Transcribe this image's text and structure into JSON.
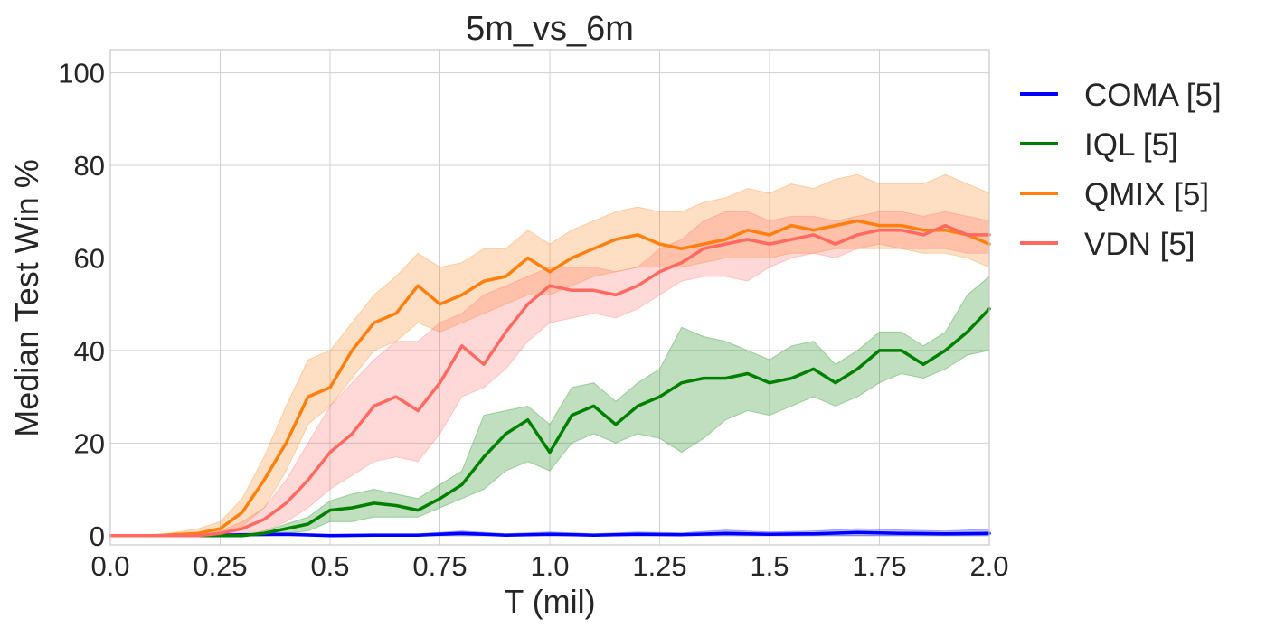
{
  "chart_data": {
    "type": "line",
    "title": "5m_vs_6m",
    "xlabel": "T (mil)",
    "ylabel": "Median Test Win %",
    "xlim": [
      0,
      2.0
    ],
    "ylim": [
      -2,
      105
    ],
    "xticks": [
      0.0,
      0.25,
      0.5,
      0.75,
      1.0,
      1.25,
      1.5,
      1.75,
      2.0
    ],
    "xtick_labels": [
      "0.0",
      "0.25",
      "0.5",
      "0.75",
      "1.0",
      "1.25",
      "1.5",
      "1.75",
      "2.0"
    ],
    "yticks": [
      0,
      20,
      40,
      60,
      80,
      100
    ],
    "ytick_labels": [
      "0",
      "20",
      "40",
      "60",
      "80",
      "100"
    ],
    "grid": true,
    "legend_position": "outside-right",
    "series": [
      {
        "name": "COMA [5]",
        "color": "#0000ff",
        "x": [
          0.0,
          0.1,
          0.2,
          0.3,
          0.4,
          0.5,
          0.6,
          0.7,
          0.8,
          0.9,
          1.0,
          1.1,
          1.2,
          1.3,
          1.4,
          1.5,
          1.6,
          1.7,
          1.8,
          1.9,
          2.0
        ],
        "y": [
          0,
          0,
          0,
          0.2,
          0.3,
          0,
          0.1,
          0.1,
          0.5,
          0.1,
          0.3,
          0.1,
          0.3,
          0.2,
          0.5,
          0.3,
          0.4,
          0.7,
          0.5,
          0.4,
          0.5
        ],
        "lower": [
          0,
          0,
          0,
          0,
          0,
          0,
          0,
          0,
          0,
          0,
          0,
          0,
          0,
          0,
          0,
          0,
          0,
          0,
          0,
          0,
          0
        ],
        "upper": [
          0,
          0,
          0,
          0.4,
          0.6,
          0.3,
          0.4,
          0.4,
          1.0,
          0.4,
          0.8,
          0.4,
          0.8,
          0.6,
          1.2,
          0.8,
          1.0,
          1.5,
          1.2,
          1.0,
          1.4
        ]
      },
      {
        "name": "IQL [5]",
        "color": "#008000",
        "x": [
          0.0,
          0.25,
          0.3,
          0.35,
          0.4,
          0.45,
          0.5,
          0.55,
          0.6,
          0.65,
          0.7,
          0.75,
          0.8,
          0.85,
          0.9,
          0.95,
          1.0,
          1.05,
          1.1,
          1.15,
          1.2,
          1.25,
          1.3,
          1.35,
          1.4,
          1.45,
          1.5,
          1.55,
          1.6,
          1.65,
          1.7,
          1.75,
          1.8,
          1.85,
          1.9,
          1.95,
          2.0
        ],
        "y": [
          0,
          0,
          0,
          0.5,
          1.5,
          2.5,
          5.5,
          6,
          7,
          6.5,
          5.5,
          8,
          11,
          17,
          22,
          25,
          18,
          26,
          28,
          24,
          28,
          30,
          33,
          34,
          34,
          35,
          33,
          34,
          36,
          33,
          36,
          40,
          40,
          37,
          40,
          44,
          49
        ],
        "lower": [
          0,
          0,
          0,
          0,
          0.5,
          1,
          3,
          3,
          4,
          4,
          4,
          6,
          8,
          10,
          14,
          16,
          14,
          20,
          22,
          20,
          22,
          21,
          18,
          21,
          25,
          27,
          26,
          28,
          30,
          28,
          30,
          33,
          35,
          34,
          36,
          39,
          40
        ],
        "upper": [
          0,
          0,
          0,
          1,
          2.5,
          4,
          7.5,
          9,
          10,
          9,
          8,
          11,
          14,
          26,
          27,
          28,
          24,
          32,
          33,
          29,
          33,
          36,
          45,
          43,
          42,
          40,
          38,
          41,
          42,
          37,
          40,
          44,
          44,
          41,
          44,
          52,
          56
        ]
      },
      {
        "name": "QMIX [5]",
        "color": "#ff7f0e",
        "x": [
          0.0,
          0.1,
          0.2,
          0.25,
          0.3,
          0.35,
          0.4,
          0.45,
          0.5,
          0.55,
          0.6,
          0.65,
          0.7,
          0.75,
          0.8,
          0.85,
          0.9,
          0.95,
          1.0,
          1.05,
          1.1,
          1.15,
          1.2,
          1.25,
          1.3,
          1.35,
          1.4,
          1.45,
          1.5,
          1.55,
          1.6,
          1.65,
          1.7,
          1.75,
          1.8,
          1.85,
          1.9,
          1.95,
          2.0
        ],
        "y": [
          0,
          0,
          0.5,
          1.5,
          5,
          12,
          20,
          30,
          32,
          40,
          46,
          48,
          54,
          50,
          52,
          55,
          56,
          60,
          57,
          60,
          62,
          64,
          65,
          63,
          62,
          63,
          64,
          66,
          65,
          67,
          66,
          67,
          68,
          67,
          67,
          66,
          66,
          65,
          63
        ],
        "lower": [
          0,
          0,
          0,
          0.5,
          2,
          6,
          14,
          24,
          28,
          34,
          40,
          42,
          46,
          44,
          46,
          48,
          50,
          52,
          52,
          54,
          56,
          57,
          58,
          58,
          58,
          59,
          60,
          60,
          60,
          61,
          61,
          62,
          62,
          62,
          62,
          61,
          61,
          60,
          58
        ],
        "upper": [
          0,
          0,
          1.5,
          3,
          8,
          17,
          28,
          38,
          40,
          46,
          52,
          56,
          61,
          58,
          59,
          62,
          62,
          66,
          63,
          66,
          68,
          70,
          71,
          70,
          70,
          72,
          73,
          75,
          74,
          76,
          75,
          77,
          78,
          76,
          76,
          76,
          78,
          76,
          74
        ]
      },
      {
        "name": "VDN [5]",
        "color": "#ff6961",
        "x": [
          0.0,
          0.2,
          0.25,
          0.3,
          0.35,
          0.4,
          0.45,
          0.5,
          0.55,
          0.6,
          0.65,
          0.7,
          0.75,
          0.8,
          0.85,
          0.9,
          0.95,
          1.0,
          1.05,
          1.1,
          1.15,
          1.2,
          1.25,
          1.3,
          1.35,
          1.4,
          1.45,
          1.5,
          1.55,
          1.6,
          1.65,
          1.7,
          1.75,
          1.8,
          1.85,
          1.9,
          1.95,
          2.0
        ],
        "y": [
          0,
          0,
          0.5,
          1.5,
          3.5,
          7,
          12,
          18,
          22,
          28,
          30,
          27,
          33,
          41,
          37,
          44,
          50,
          54,
          53,
          53,
          52,
          54,
          57,
          59,
          62,
          63,
          64,
          63,
          64,
          65,
          63,
          65,
          66,
          66,
          65,
          67,
          65,
          65
        ],
        "lower": [
          0,
          0,
          0,
          0.5,
          1,
          3,
          6,
          10,
          13,
          16,
          17,
          16,
          22,
          30,
          32,
          36,
          42,
          46,
          47,
          48,
          47,
          49,
          52,
          55,
          56,
          56,
          55,
          58,
          60,
          61,
          60,
          62,
          63,
          62,
          62,
          62,
          61,
          61
        ],
        "upper": [
          0,
          0,
          1,
          3,
          6,
          12,
          20,
          28,
          33,
          38,
          42,
          42,
          46,
          48,
          52,
          54,
          56,
          58,
          58,
          58,
          57,
          58,
          62,
          64,
          68,
          70,
          70,
          68,
          69,
          69,
          68,
          69,
          70,
          70,
          69,
          70,
          69,
          68
        ]
      }
    ]
  }
}
